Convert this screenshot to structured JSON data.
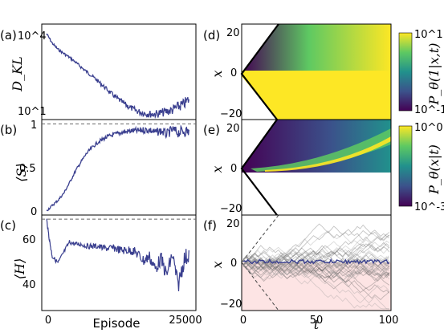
{
  "figure": {
    "panel_labels": [
      "(a)",
      "(b)",
      "(c)",
      "(d)",
      "(e)",
      "(f)"
    ]
  },
  "colors": {
    "trace": "#3a3f8f",
    "viridis_low": "#440154",
    "viridis_mid": "#21918c",
    "viridis_high": "#fde725",
    "shade": "#fde4e4"
  },
  "chart_data": [
    {
      "panel": "(a)",
      "type": "line",
      "ylabel": "D_KL",
      "yscale": "log",
      "ytick_labels": [
        "10^4",
        "10^1"
      ],
      "xlim": [
        0,
        25000
      ],
      "ylim": [
        10,
        10000
      ],
      "x": [
        0,
        1000,
        2000,
        3000,
        4000,
        5000,
        6000,
        7000,
        8000,
        9000,
        10000,
        11000,
        12000,
        13000,
        14000,
        15000,
        16000,
        17000,
        18000,
        19000,
        20000,
        21000,
        22000,
        23000,
        24000,
        25000
      ],
      "values": [
        5000,
        2500,
        1600,
        1200,
        900,
        650,
        450,
        320,
        230,
        160,
        110,
        75,
        52,
        38,
        28,
        22,
        18,
        16,
        15,
        15,
        16,
        18,
        20,
        25,
        30,
        45
      ]
    },
    {
      "panel": "(b)",
      "type": "line",
      "ylabel": "⟨S⟩",
      "ytick_labels": [
        "1",
        "0.5",
        "0"
      ],
      "xlim": [
        0,
        25000
      ],
      "ylim": [
        -0.05,
        1.05
      ],
      "reference_line": 1.0,
      "x": [
        0,
        1000,
        2000,
        3000,
        4000,
        5000,
        6000,
        7000,
        8000,
        9000,
        10000,
        11000,
        12000,
        13000,
        14000,
        15000,
        16000,
        17000,
        18000,
        19000,
        20000,
        21000,
        22000,
        23000,
        24000,
        25000
      ],
      "values": [
        0.0,
        0.06,
        0.12,
        0.2,
        0.32,
        0.45,
        0.56,
        0.66,
        0.73,
        0.79,
        0.83,
        0.86,
        0.88,
        0.9,
        0.91,
        0.92,
        0.92,
        0.93,
        0.93,
        0.9,
        0.92,
        0.88,
        0.93,
        0.9,
        0.92,
        0.91
      ]
    },
    {
      "panel": "(c)",
      "type": "line",
      "ylabel": "⟨H⟩",
      "xlabel": "Episode",
      "xtick_labels": [
        "0",
        "25000"
      ],
      "ytick_labels": [
        "60",
        "40"
      ],
      "xlim": [
        0,
        25000
      ],
      "ylim": [
        28,
        74
      ],
      "reference_line": 72,
      "x": [
        0,
        500,
        1000,
        2000,
        3000,
        4000,
        5000,
        6000,
        7000,
        8000,
        9000,
        10000,
        11000,
        12000,
        13000,
        14000,
        15000,
        16000,
        17000,
        18000,
        19000,
        20000,
        21000,
        22000,
        23000,
        24000,
        25000
      ],
      "values": [
        72,
        62,
        54,
        51,
        56,
        61,
        60,
        60,
        59,
        59,
        59,
        58,
        58,
        58,
        57,
        57,
        57,
        55,
        52,
        54,
        48,
        53,
        45,
        55,
        40,
        52,
        56
      ]
    },
    {
      "panel": "(d)",
      "type": "heatmap",
      "ylabel": "x",
      "ytick_labels": [
        "20",
        "0",
        "−20"
      ],
      "xlim": [
        0,
        100
      ],
      "ylim": [
        -25,
        25
      ],
      "colorbar_label": "P_θ(1|x,t)",
      "colorbar_ticks": [
        "10^1",
        "10^-1"
      ]
    },
    {
      "panel": "(e)",
      "type": "heatmap",
      "ylabel": "x",
      "ytick_labels": [
        "20",
        "0",
        "−20"
      ],
      "xlim": [
        0,
        100
      ],
      "ylim": [
        -25,
        25
      ],
      "colorbar_label": "P_θ(x|t)",
      "colorbar_ticks": [
        "10^0",
        "10^-3"
      ]
    },
    {
      "panel": "(f)",
      "type": "line",
      "ylabel": "x",
      "xlabel": "t",
      "xtick_labels": [
        "0",
        "50",
        "100"
      ],
      "ytick_labels": [
        "20",
        "0",
        "−20"
      ],
      "xlim": [
        0,
        100
      ],
      "ylim": [
        -25,
        25
      ]
    }
  ]
}
